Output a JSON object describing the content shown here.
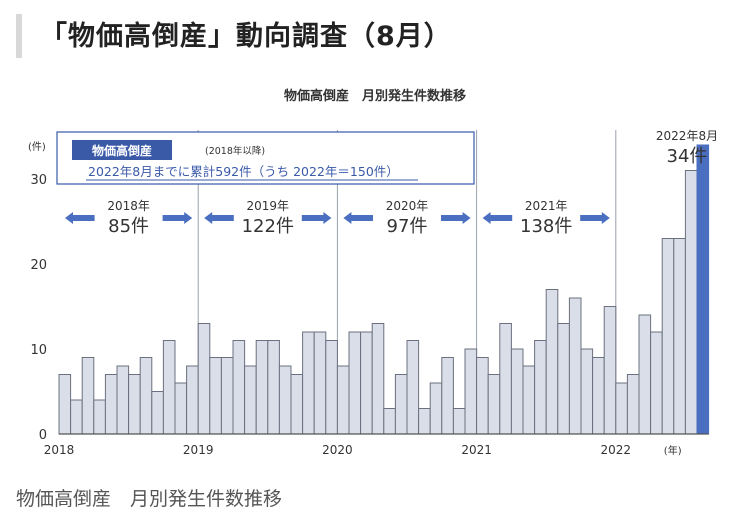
{
  "page": {
    "title": "「物価高倒産」動向調査（8月）",
    "caption": "物価高倒産　月別発生件数推移"
  },
  "chart_data": {
    "type": "bar",
    "title": "物価高倒産　月別発生件数推移",
    "ylabel": "(件)",
    "xlabel": "(年)",
    "ylim": [
      0,
      30
    ],
    "yticks": [
      0,
      10,
      20,
      30
    ],
    "xticks": [
      "2018",
      "2019",
      "2020",
      "2021",
      "2022"
    ],
    "series": [
      {
        "values": [
          7,
          4,
          9,
          4,
          7,
          8,
          7,
          9,
          5,
          11,
          6,
          8,
          13,
          9,
          9,
          11,
          8,
          11,
          11,
          8,
          7,
          12,
          12,
          11,
          8,
          12,
          12,
          13,
          3,
          7,
          11,
          3,
          6,
          9,
          3,
          10,
          9,
          7,
          13,
          10,
          8,
          11,
          17,
          13,
          16,
          10,
          9,
          15,
          6,
          7,
          14,
          12,
          23,
          23,
          31,
          34
        ]
      }
    ],
    "bar_color": "#d9dee9",
    "highlight_color": "#4a6ec0",
    "highlight_index": 55,
    "legend": {
      "tag": "物価高倒産",
      "period": "(2018年以降)",
      "total": "2022年8月までに累計592件（うち 2022年＝150件）"
    },
    "year_totals": [
      {
        "year": "2018年",
        "count": "85件"
      },
      {
        "year": "2019年",
        "count": "122件"
      },
      {
        "year": "2020年",
        "count": "97件"
      },
      {
        "year": "2021年",
        "count": "138件"
      }
    ],
    "annotation": {
      "label": "2022年8月",
      "value": "34件"
    },
    "colors": {
      "accent": "#4a6ec0",
      "box": "#3a5aa8",
      "bar_stroke": "#6c7080",
      "text": "#333333"
    }
  }
}
